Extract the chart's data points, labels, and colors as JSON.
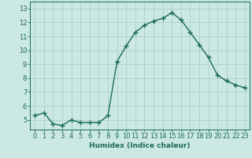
{
  "x": [
    0,
    1,
    2,
    3,
    4,
    5,
    6,
    7,
    8,
    9,
    10,
    11,
    12,
    13,
    14,
    15,
    16,
    17,
    18,
    19,
    20,
    21,
    22,
    23
  ],
  "y": [
    5.3,
    5.5,
    4.7,
    4.6,
    5.0,
    4.8,
    4.8,
    4.8,
    5.3,
    9.2,
    10.3,
    11.3,
    11.8,
    12.1,
    12.3,
    12.7,
    12.2,
    11.3,
    10.4,
    9.5,
    8.2,
    7.8,
    7.5,
    7.3
  ],
  "xlabel": "Humidex (Indice chaleur)",
  "ylabel": "",
  "xlim": [
    -0.5,
    23.5
  ],
  "ylim": [
    4.3,
    13.5
  ],
  "yticks": [
    5,
    6,
    7,
    8,
    9,
    10,
    11,
    12,
    13
  ],
  "xtick_labels": [
    "0",
    "1",
    "2",
    "3",
    "4",
    "5",
    "6",
    "7",
    "8",
    "9",
    "10",
    "11",
    "12",
    "13",
    "14",
    "15",
    "16",
    "17",
    "18",
    "19",
    "20",
    "21",
    "22",
    "23"
  ],
  "line_color": "#1a6b5a",
  "marker": "+",
  "bg_color": "#cce8e4",
  "grid_color": "#aacfca",
  "axis_color": "#1a6b5a",
  "label_fontsize": 6.5,
  "tick_fontsize": 6.0,
  "linewidth": 1.0,
  "markersize": 4,
  "markerwidth": 1.0
}
